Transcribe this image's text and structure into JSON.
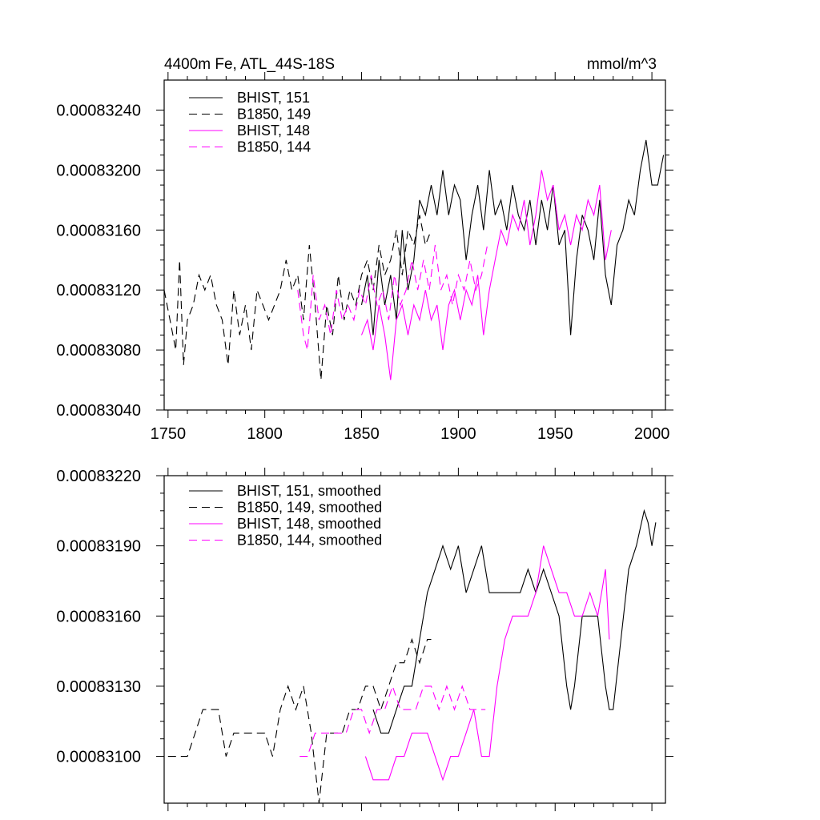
{
  "colors": {
    "black": "#000000",
    "magenta": "#ff00ff"
  },
  "chart_data": [
    {
      "type": "line",
      "title_left": "4400m Fe, ATL_44S-18S",
      "title_right": "mmol/m^3",
      "xlabel": "",
      "ylabel": "",
      "xlim": [
        1748,
        2007
      ],
      "ylim": [
        0.0008304,
        0.0008326
      ],
      "xticks": [
        1750,
        1800,
        1850,
        1900,
        1950,
        2000
      ],
      "xtick_labels": [
        "1750",
        "1800",
        "1850",
        "1900",
        "1950",
        "2000"
      ],
      "yticks": [
        0.0008304,
        0.0008308,
        0.0008312,
        0.0008316,
        0.000832,
        0.0008324
      ],
      "ytick_labels": [
        "0.00083040",
        "0.00083080",
        "0.00083120",
        "0.00083160",
        "0.00083200",
        "0.00083240"
      ],
      "legend_position": "top-left",
      "series": [
        {
          "name": "BHIST, 151",
          "color": "#000000",
          "dash": "solid",
          "x": [
            1850,
            1853,
            1856,
            1859,
            1862,
            1865,
            1868,
            1871,
            1874,
            1877,
            1880,
            1883,
            1886,
            1889,
            1892,
            1895,
            1898,
            1901,
            1904,
            1907,
            1910,
            1913,
            1916,
            1919,
            1922,
            1925,
            1928,
            1931,
            1934,
            1937,
            1940,
            1943,
            1946,
            1949,
            1952,
            1955,
            1958,
            1961,
            1964,
            1967,
            1970,
            1973,
            1976,
            1979,
            1982,
            1985,
            1988,
            1991,
            1994,
            1997,
            2000,
            2003,
            2006
          ],
          "y": [
            0.0008311,
            0.0008313,
            0.0008309,
            0.0008314,
            0.0008311,
            0.0008313,
            0.000831,
            0.0008316,
            0.0008312,
            0.0008314,
            0.0008318,
            0.0008317,
            0.0008319,
            0.0008317,
            0.000832,
            0.0008317,
            0.0008319,
            0.0008318,
            0.0008314,
            0.0008317,
            0.0008319,
            0.0008316,
            0.000832,
            0.0008317,
            0.0008318,
            0.0008316,
            0.0008319,
            0.0008317,
            0.0008316,
            0.0008318,
            0.0008315,
            0.0008318,
            0.0008316,
            0.0008319,
            0.0008315,
            0.0008316,
            0.0008309,
            0.0008314,
            0.0008317,
            0.0008316,
            0.0008314,
            0.0008318,
            0.0008313,
            0.0008311,
            0.0008315,
            0.0008316,
            0.0008318,
            0.0008317,
            0.000832,
            0.0008322,
            0.0008319,
            0.0008319,
            0.0008321
          ]
        },
        {
          "name": "B1850, 149",
          "color": "#000000",
          "dash": "dashed",
          "x": [
            1748,
            1751,
            1754,
            1756,
            1758,
            1760,
            1763,
            1766,
            1769,
            1772,
            1775,
            1778,
            1781,
            1784,
            1787,
            1790,
            1793,
            1796,
            1799,
            1802,
            1805,
            1808,
            1811,
            1814,
            1817,
            1820,
            1823,
            1826,
            1829,
            1832,
            1835,
            1838,
            1841,
            1844,
            1847,
            1850,
            1853,
            1856,
            1859,
            1862,
            1865,
            1868,
            1871,
            1874,
            1877,
            1880,
            1883,
            1886
          ],
          "y": [
            0.0008312,
            0.000831,
            0.0008308,
            0.0008314,
            0.0008307,
            0.000831,
            0.0008311,
            0.0008313,
            0.0008312,
            0.0008313,
            0.0008311,
            0.000831,
            0.0008307,
            0.0008312,
            0.0008309,
            0.0008311,
            0.0008308,
            0.0008312,
            0.0008311,
            0.000831,
            0.0008311,
            0.0008312,
            0.0008314,
            0.0008312,
            0.0008313,
            0.000831,
            0.0008315,
            0.0008311,
            0.0008306,
            0.0008311,
            0.0008309,
            0.0008313,
            0.000831,
            0.0008312,
            0.0008311,
            0.0008313,
            0.0008314,
            0.0008312,
            0.0008315,
            0.0008313,
            0.0008314,
            0.0008316,
            0.0008313,
            0.0008316,
            0.0008315,
            0.0008317,
            0.0008315,
            0.0008316
          ]
        },
        {
          "name": "BHIST, 148",
          "color": "#ff00ff",
          "dash": "solid",
          "x": [
            1850,
            1853,
            1856,
            1859,
            1862,
            1865,
            1868,
            1871,
            1874,
            1877,
            1880,
            1883,
            1886,
            1889,
            1892,
            1895,
            1898,
            1901,
            1904,
            1907,
            1910,
            1913,
            1916,
            1919,
            1922,
            1925,
            1928,
            1931,
            1934,
            1937,
            1940,
            1943,
            1946,
            1949,
            1952,
            1955,
            1958,
            1961,
            1964,
            1967,
            1970,
            1973,
            1976,
            1979
          ],
          "y": [
            0.0008309,
            0.000831,
            0.0008308,
            0.0008311,
            0.0008309,
            0.0008306,
            0.000831,
            0.0008311,
            0.0008309,
            0.0008311,
            0.000831,
            0.0008312,
            0.000831,
            0.0008311,
            0.0008308,
            0.0008311,
            0.0008312,
            0.000831,
            0.0008312,
            0.0008311,
            0.0008313,
            0.0008309,
            0.0008312,
            0.0008314,
            0.0008316,
            0.0008315,
            0.0008317,
            0.0008316,
            0.0008318,
            0.0008315,
            0.0008317,
            0.000832,
            0.0008318,
            0.0008319,
            0.0008316,
            0.0008317,
            0.0008315,
            0.0008317,
            0.0008316,
            0.0008318,
            0.0008317,
            0.0008319,
            0.0008314,
            0.0008316
          ]
        },
        {
          "name": "B1850, 144",
          "color": "#ff00ff",
          "dash": "dashed",
          "x": [
            1817,
            1820,
            1822,
            1825,
            1828,
            1831,
            1834,
            1837,
            1840,
            1843,
            1846,
            1849,
            1852,
            1855,
            1858,
            1861,
            1864,
            1867,
            1870,
            1873,
            1876,
            1879,
            1882,
            1885,
            1888,
            1891,
            1894,
            1897,
            1900,
            1903,
            1906,
            1909,
            1912,
            1915
          ],
          "y": [
            0.0008312,
            0.0008309,
            0.0008308,
            0.0008313,
            0.000831,
            0.0008311,
            0.0008309,
            0.0008312,
            0.000831,
            0.0008311,
            0.000831,
            0.0008312,
            0.0008311,
            0.0008313,
            0.0008311,
            0.0008312,
            0.000831,
            0.0008313,
            0.0008311,
            0.0008312,
            0.0008314,
            0.0008312,
            0.0008314,
            0.0008312,
            0.0008315,
            0.0008312,
            0.0008313,
            0.0008311,
            0.0008313,
            0.0008312,
            0.0008314,
            0.0008312,
            0.0008313,
            0.0008315
          ]
        }
      ]
    },
    {
      "type": "line",
      "title_left": "",
      "title_right": "",
      "xlabel": "",
      "ylabel": "",
      "xlim": [
        1748,
        2007
      ],
      "ylim": [
        0.0008308,
        0.0008322
      ],
      "xticks": [
        1750,
        1800,
        1850,
        1900,
        1950,
        2000
      ],
      "xtick_labels": [],
      "yticks": [
        0.000831,
        0.0008313,
        0.0008316,
        0.0008319,
        0.0008322
      ],
      "ytick_labels": [
        "0.00083100",
        "0.00083130",
        "0.00083160",
        "0.00083190",
        "0.00083220"
      ],
      "legend_position": "top-left",
      "series": [
        {
          "name": "BHIST, 151, smoothed",
          "color": "#000000",
          "dash": "solid",
          "x": [
            1856,
            1860,
            1864,
            1868,
            1872,
            1876,
            1880,
            1884,
            1888,
            1892,
            1896,
            1900,
            1904,
            1908,
            1912,
            1916,
            1920,
            1924,
            1928,
            1932,
            1936,
            1940,
            1944,
            1948,
            1952,
            1956,
            1958,
            1960,
            1964,
            1968,
            1972,
            1976,
            1978,
            1980,
            1984,
            1988,
            1992,
            1996,
            1998,
            2000,
            2002
          ],
          "y": [
            0.0008312,
            0.0008311,
            0.0008311,
            0.0008312,
            0.0008313,
            0.0008313,
            0.0008315,
            0.0008317,
            0.0008318,
            0.0008319,
            0.0008318,
            0.0008319,
            0.0008317,
            0.0008318,
            0.0008319,
            0.0008317,
            0.0008317,
            0.0008317,
            0.0008317,
            0.0008317,
            0.0008318,
            0.0008317,
            0.0008318,
            0.0008317,
            0.0008316,
            0.0008313,
            0.0008312,
            0.0008313,
            0.0008316,
            0.0008316,
            0.0008316,
            0.0008313,
            0.0008312,
            0.0008312,
            0.0008315,
            0.0008318,
            0.0008319,
            0.00083205,
            0.000832,
            0.0008319,
            0.000832
          ]
        },
        {
          "name": "B1850, 149, smoothed",
          "color": "#000000",
          "dash": "dashed",
          "x": [
            1750,
            1753,
            1756,
            1760,
            1764,
            1768,
            1772,
            1776,
            1780,
            1784,
            1788,
            1792,
            1796,
            1800,
            1804,
            1808,
            1812,
            1816,
            1820,
            1824,
            1828,
            1832,
            1836,
            1840,
            1844,
            1848,
            1852,
            1856,
            1860,
            1864,
            1868,
            1872,
            1876,
            1880,
            1884,
            1886
          ],
          "y": [
            0.000831,
            0.000831,
            0.000831,
            0.000831,
            0.0008311,
            0.0008312,
            0.0008312,
            0.0008312,
            0.000831,
            0.0008311,
            0.0008311,
            0.0008311,
            0.0008311,
            0.0008311,
            0.000831,
            0.0008312,
            0.0008313,
            0.0008312,
            0.0008313,
            0.0008311,
            0.0008308,
            0.0008311,
            0.0008311,
            0.0008311,
            0.0008312,
            0.0008312,
            0.0008313,
            0.0008313,
            0.0008312,
            0.0008313,
            0.0008314,
            0.0008314,
            0.0008315,
            0.0008314,
            0.0008315,
            0.0008315
          ]
        },
        {
          "name": "BHIST, 148, smoothed",
          "color": "#ff00ff",
          "dash": "solid",
          "x": [
            1852,
            1856,
            1860,
            1864,
            1868,
            1872,
            1876,
            1880,
            1884,
            1888,
            1892,
            1896,
            1900,
            1904,
            1908,
            1912,
            1916,
            1920,
            1924,
            1928,
            1932,
            1936,
            1940,
            1944,
            1948,
            1952,
            1956,
            1960,
            1964,
            1968,
            1972,
            1976,
            1978
          ],
          "y": [
            0.000831,
            0.0008309,
            0.0008309,
            0.0008309,
            0.000831,
            0.000831,
            0.0008311,
            0.0008311,
            0.0008311,
            0.000831,
            0.0008309,
            0.000831,
            0.000831,
            0.0008311,
            0.0008312,
            0.000831,
            0.000831,
            0.0008313,
            0.0008315,
            0.0008316,
            0.0008316,
            0.0008316,
            0.0008317,
            0.0008319,
            0.0008318,
            0.0008317,
            0.0008317,
            0.0008316,
            0.0008316,
            0.0008317,
            0.0008316,
            0.0008318,
            0.0008315
          ]
        },
        {
          "name": "B1850, 144, smoothed",
          "color": "#ff00ff",
          "dash": "dashed",
          "x": [
            1818,
            1822,
            1826,
            1830,
            1834,
            1838,
            1842,
            1846,
            1850,
            1854,
            1858,
            1862,
            1866,
            1870,
            1874,
            1878,
            1882,
            1886,
            1890,
            1894,
            1898,
            1902,
            1906,
            1910,
            1914
          ],
          "y": [
            0.000831,
            0.000831,
            0.0008311,
            0.0008311,
            0.0008311,
            0.0008311,
            0.0008311,
            0.0008312,
            0.0008312,
            0.0008311,
            0.0008312,
            0.0008312,
            0.0008313,
            0.0008312,
            0.0008312,
            0.0008312,
            0.0008313,
            0.0008313,
            0.0008312,
            0.0008313,
            0.0008312,
            0.0008313,
            0.0008312,
            0.0008312,
            0.0008312
          ]
        }
      ]
    }
  ]
}
